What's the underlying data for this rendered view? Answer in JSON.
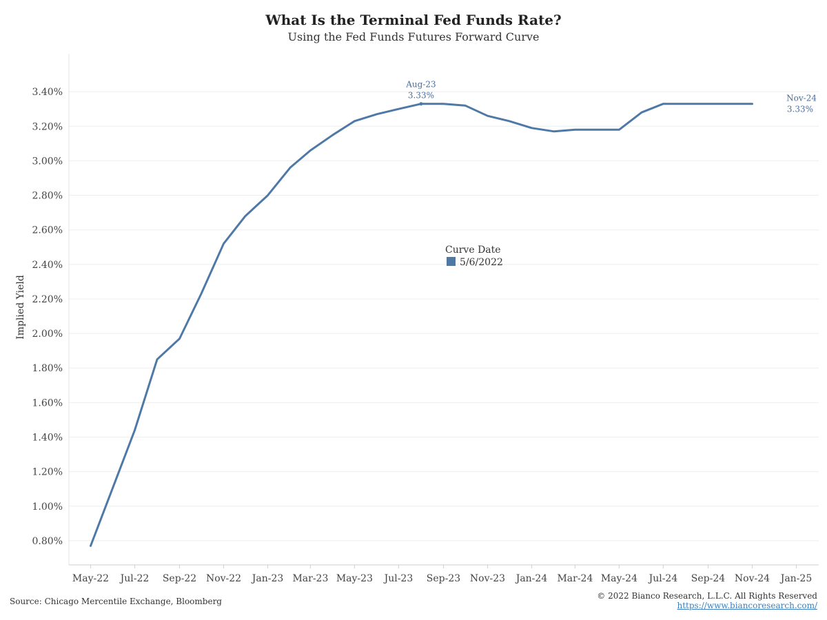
{
  "chart_data": {
    "type": "line",
    "title": "What Is the Terminal Fed Funds Rate?",
    "subtitle": "Using the Fed Funds Futures Forward Curve",
    "ylabel": "Implied Yield",
    "xlabel": "",
    "ylim": [
      0.0066,
      0.0362
    ],
    "y_ticks": [
      "0.80%",
      "1.00%",
      "1.20%",
      "1.40%",
      "1.60%",
      "1.80%",
      "2.00%",
      "2.20%",
      "2.40%",
      "2.60%",
      "2.80%",
      "3.00%",
      "3.20%",
      "3.40%"
    ],
    "y_tick_values": [
      0.008,
      0.01,
      0.012,
      0.014,
      0.016,
      0.018,
      0.02,
      0.022,
      0.024,
      0.026,
      0.028,
      0.03,
      0.032,
      0.034
    ],
    "x_ticks": [
      "May-22",
      "Jul-22",
      "Sep-22",
      "Nov-22",
      "Jan-23",
      "Mar-23",
      "May-23",
      "Jul-23",
      "Sep-23",
      "Nov-23",
      "Jan-24",
      "Mar-24",
      "May-24",
      "Jul-24",
      "Sep-24",
      "Nov-24",
      "Jan-25"
    ],
    "x_tick_dates": [
      "2022-05-01",
      "2022-07-01",
      "2022-09-01",
      "2022-11-01",
      "2023-01-01",
      "2023-03-01",
      "2023-05-01",
      "2023-07-01",
      "2023-09-01",
      "2023-11-01",
      "2024-01-01",
      "2024-03-01",
      "2024-05-01",
      "2024-07-01",
      "2024-09-01",
      "2024-11-01",
      "2025-01-01"
    ],
    "xlim": [
      "2022-04-01",
      "2025-02-01"
    ],
    "grid": true,
    "series": [
      {
        "name": "5/6/2022",
        "color": "#4e79a7",
        "x": [
          "2022-05-01",
          "2022-06-01",
          "2022-07-01",
          "2022-08-01",
          "2022-09-01",
          "2022-10-01",
          "2022-11-01",
          "2022-12-01",
          "2023-01-01",
          "2023-02-01",
          "2023-03-01",
          "2023-04-01",
          "2023-05-01",
          "2023-06-01",
          "2023-07-01",
          "2023-08-01",
          "2023-09-01",
          "2023-10-01",
          "2023-11-01",
          "2023-12-01",
          "2024-01-01",
          "2024-02-01",
          "2024-03-01",
          "2024-04-01",
          "2024-05-01",
          "2024-06-01",
          "2024-07-01",
          "2024-08-01",
          "2024-09-01",
          "2024-10-01",
          "2024-11-01"
        ],
        "values": [
          0.0077,
          0.0111,
          0.0144,
          0.0185,
          0.0197,
          0.0223,
          0.0252,
          0.0268,
          0.028,
          0.0296,
          0.0306,
          0.0315,
          0.0323,
          0.0327,
          0.033,
          0.0333,
          0.0333,
          0.0332,
          0.0326,
          0.0323,
          0.0319,
          0.0317,
          0.0318,
          0.0318,
          0.0318,
          0.0328,
          0.0333,
          0.0333,
          0.0333,
          0.0333,
          0.0333
        ]
      }
    ],
    "legend": {
      "title": "Curve Date",
      "placement": "center",
      "entries": [
        "5/6/2022"
      ]
    },
    "annotations": [
      {
        "date": "2023-08-01",
        "label": "Aug-23",
        "value_text": "3.33%",
        "marker": true
      },
      {
        "date": "2024-11-01",
        "label": "Nov-24",
        "value_text": "3.33%",
        "marker": false
      }
    ]
  },
  "footer": {
    "source": "Source: Chicago Mercentile Exchange, Bloomberg",
    "copyright": "© 2022 Bianco Research, L.L.C. All Rights Reserved",
    "url": "https://www.biancoresearch.com/"
  }
}
